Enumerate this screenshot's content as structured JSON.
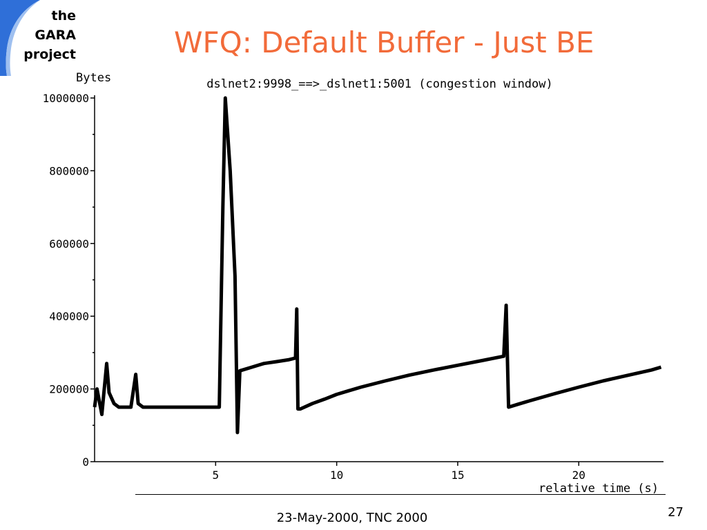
{
  "logo": {
    "lines": [
      "the",
      "GARA",
      "project"
    ],
    "swoosh_color": "#2f6fd8"
  },
  "slide": {
    "title": "WFQ: Default Buffer - Just BE",
    "title_color": "#f26b3a",
    "footer": "23-May-2000, TNC 2000",
    "number": "27"
  },
  "chart_data": {
    "type": "line",
    "title": "dslnet2:9998_==>_dslnet1:5001 (congestion window)",
    "ylabel": "Bytes",
    "xlabel": "relative time (s)",
    "xlim": [
      0,
      23.5
    ],
    "ylim": [
      0,
      1000000
    ],
    "x_ticks": [
      5,
      10,
      15,
      20
    ],
    "y_ticks": [
      0,
      200000,
      400000,
      600000,
      800000,
      1000000
    ],
    "grid": false,
    "series": [
      {
        "x": [
          0,
          0.1,
          0.3,
          0.5,
          0.6,
          0.8,
          1.0,
          1.5,
          1.7,
          1.8,
          2.0,
          2.5,
          3.0,
          3.5,
          4.0,
          4.5,
          5.0,
          5.15,
          5.3,
          5.4,
          5.6,
          5.8,
          5.9,
          6.0,
          6.5,
          7.0,
          7.5,
          8.0,
          8.3,
          8.35,
          8.4,
          8.5,
          9.0,
          9.5,
          10.0,
          10.5,
          11.0,
          12.0,
          13.0,
          14.0,
          15.0,
          16.0,
          16.9,
          17.0,
          17.1,
          17.5,
          18.0,
          19.0,
          20.0,
          21.0,
          22.0,
          23.0,
          23.4
        ],
        "y": [
          150000,
          200000,
          130000,
          270000,
          190000,
          160000,
          150000,
          150000,
          240000,
          160000,
          150000,
          150000,
          150000,
          150000,
          150000,
          150000,
          150000,
          150000,
          700000,
          1000000,
          800000,
          510000,
          80000,
          250000,
          260000,
          270000,
          275000,
          280000,
          285000,
          420000,
          145000,
          145000,
          160000,
          172000,
          185000,
          195000,
          205000,
          222000,
          238000,
          252000,
          265000,
          278000,
          290000,
          430000,
          150000,
          158000,
          168000,
          187000,
          205000,
          222000,
          237000,
          252000,
          260000
        ]
      }
    ]
  }
}
